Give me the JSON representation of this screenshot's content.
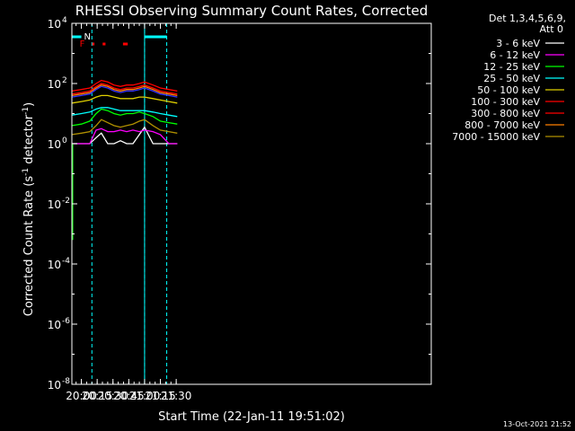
{
  "chart_data": {
    "type": "line",
    "title": "RHESSI Observing Summary Count Rates, Corrected",
    "xlabel": "Start Time (22-Jan-11 19:51:02)",
    "ylabel_main": "Corrected Count Rate (s",
    "ylabel_sup1": "-1",
    "ylabel_mid": " detector",
    "ylabel_sup2": "-1",
    "ylabel_end": ")",
    "log_y": true,
    "ylim_exp": [
      -8,
      4
    ],
    "xlim_min": [
      1191.0,
      1532.0
    ],
    "x_ticks": [
      {
        "min": 1200,
        "label": "20:00"
      },
      {
        "min": 1215,
        "label": "20:15"
      },
      {
        "min": 1230,
        "label": "20:30"
      },
      {
        "min": 1245,
        "label": "20:45"
      },
      {
        "min": 1260,
        "label": "21:00"
      },
      {
        "min": 1275,
        "label": "21:15"
      },
      {
        "min": 1290,
        "label": "21:30"
      }
    ],
    "y_ticks": [
      {
        "exp": 4,
        "base": "10",
        "sup": "4"
      },
      {
        "exp": 2,
        "base": "10",
        "sup": "2"
      },
      {
        "exp": 0,
        "base": "10",
        "sup": "0"
      },
      {
        "exp": -2,
        "base": "10",
        "sup": "-2"
      },
      {
        "exp": -4,
        "base": "10",
        "sup": "-4"
      },
      {
        "exp": -6,
        "base": "10",
        "sup": "-6"
      },
      {
        "exp": -8,
        "base": "10",
        "sup": "-8"
      }
    ],
    "legend_header": [
      "Det 1,3,4,5,6,9,",
      "Att 0"
    ],
    "series": [
      {
        "name": "3 - 6 keV",
        "color": "#ffffff",
        "values_log10": [
          0.0,
          0.0,
          0.0,
          0.2,
          0.35,
          0.0,
          0.0,
          0.1,
          0.0,
          0.0,
          0.3,
          0.55,
          0.0,
          0.0,
          0.0,
          0.0
        ]
      },
      {
        "name": "6 - 12 keV",
        "color": "#ff00ff",
        "values_log10": [
          0.0,
          0.0,
          0.0,
          0.45,
          0.5,
          0.4,
          0.4,
          0.45,
          0.4,
          0.45,
          0.4,
          0.45,
          0.4,
          0.3,
          0.0,
          0.0
        ]
      },
      {
        "name": "12 - 25 keV",
        "color": "#00ff00",
        "values_log10": [
          0.6,
          0.65,
          0.75,
          1.0,
          1.15,
          1.1,
          1.0,
          0.95,
          1.0,
          1.0,
          1.05,
          1.0,
          0.9,
          0.75,
          0.7,
          0.65
        ]
      },
      {
        "name": "25 - 50 keV",
        "color": "#00ffff",
        "values_log10": [
          0.95,
          1.0,
          1.05,
          1.15,
          1.2,
          1.2,
          1.15,
          1.1,
          1.1,
          1.1,
          1.1,
          1.1,
          1.05,
          1.0,
          0.95,
          0.9
        ]
      },
      {
        "name": "50 - 100 keV",
        "color": "#e0d000",
        "values_log10": [
          1.35,
          1.4,
          1.45,
          1.55,
          1.6,
          1.6,
          1.55,
          1.5,
          1.5,
          1.5,
          1.55,
          1.55,
          1.5,
          1.45,
          1.4,
          1.35
        ]
      },
      {
        "name": "100 - 300 keV",
        "color": "#ff0000",
        "values_log10": [
          1.75,
          1.8,
          1.85,
          2.0,
          2.1,
          2.05,
          1.95,
          1.9,
          1.95,
          1.95,
          2.0,
          2.05,
          1.95,
          1.85,
          1.8,
          1.75
        ]
      },
      {
        "name": "300 - 800 keV",
        "color": "#ff0000",
        "values_log10": [
          1.65,
          1.7,
          1.75,
          1.9,
          2.0,
          1.95,
          1.85,
          1.8,
          1.85,
          1.85,
          1.9,
          1.95,
          1.85,
          1.75,
          1.7,
          1.65
        ]
      },
      {
        "name": "800 - 7000 keV",
        "color": "#ff8000",
        "values_log10": [
          1.6,
          1.65,
          1.7,
          1.85,
          1.95,
          1.9,
          1.8,
          1.75,
          1.8,
          1.8,
          1.85,
          1.9,
          1.8,
          1.7,
          1.65,
          1.6
        ]
      },
      {
        "name": "7000 - 15000 keV",
        "color": "#b09000",
        "values_log10": [
          0.3,
          0.35,
          0.4,
          0.6,
          0.8,
          0.7,
          0.6,
          0.55,
          0.6,
          0.65,
          0.75,
          0.8,
          0.6,
          0.45,
          0.4,
          0.35
        ]
      }
    ],
    "series_x_min": [
      1191,
      1200,
      1208,
      1214,
      1219,
      1225,
      1231,
      1237,
      1243,
      1249,
      1255,
      1260,
      1268,
      1275,
      1283,
      1291
    ],
    "blue_series_color": "#3333ff",
    "blue_series_log10": [
      1.55,
      1.6,
      1.65,
      1.8,
      1.9,
      1.85,
      1.75,
      1.7,
      1.75,
      1.75,
      1.8,
      1.85,
      1.75,
      1.65,
      1.6,
      1.55
    ],
    "night_marker": "N",
    "night_segments_min": [
      [
        1191,
        1200
      ],
      [
        1260,
        1281
      ]
    ],
    "night_dashed_min": [
      1210,
      1260,
      1281
    ],
    "flare_marker": "F",
    "flare_segments_min": [
      [
        1210.3,
        1212.4
      ],
      [
        1220.2,
        1222.9
      ],
      [
        1239.5,
        1244.0
      ]
    ],
    "night_color": "#00ffff",
    "flare_color": "#ff0000",
    "timestamp": "13-Oct-2021 21:52"
  }
}
